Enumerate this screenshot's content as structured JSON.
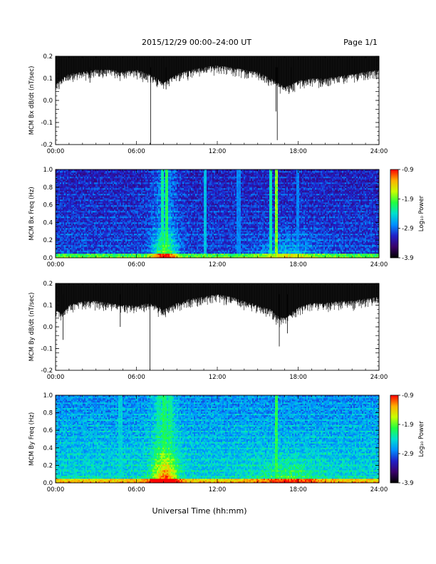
{
  "header": {
    "title": "2015/12/29  00:00–24:00 UT",
    "page": "Page 1/1"
  },
  "footer": {
    "xlabel": "Universal Time (hh:mm)"
  },
  "colors": {
    "colorbar_stops": [
      "#000000",
      "#3a006a",
      "#2020c8",
      "#0090ff",
      "#00e0d0",
      "#20ff40",
      "#c8ff00",
      "#ffb000",
      "#ff0000"
    ]
  },
  "chart_data": [
    {
      "id": "bx-dbdt",
      "type": "line",
      "ylabel": "MCM Bx dB/dt (nT/sec)",
      "xlabel": "",
      "xlim": [
        0,
        24
      ],
      "ylim": [
        -0.2,
        0.2
      ],
      "x_ticks": [
        0,
        6,
        12,
        18,
        24
      ],
      "x_tick_labels": [
        "00:00",
        "06:00",
        "12:00",
        "18:00",
        "24:00"
      ],
      "y_ticks": [
        -0.2,
        -0.1,
        0.0,
        0.1,
        0.2
      ],
      "y_tick_labels": [
        "-0.2",
        "-0.1",
        "0.0",
        "0.1",
        "0.2"
      ],
      "envelope": {
        "x": [
          0,
          0.5,
          1,
          2,
          3,
          4,
          5,
          6,
          7,
          7.5,
          8,
          9,
          10,
          11,
          12,
          13,
          14,
          15,
          16,
          16.5,
          17,
          18,
          19,
          20,
          21,
          22,
          23,
          24
        ],
        "upper": [
          0.2,
          0.2,
          0.2,
          0.2,
          0.2,
          0.2,
          0.2,
          0.2,
          0.2,
          0.2,
          0.2,
          0.2,
          0.2,
          0.2,
          0.2,
          0.2,
          0.2,
          0.2,
          0.2,
          0.2,
          0.2,
          0.2,
          0.2,
          0.2,
          0.2,
          0.2,
          0.2,
          0.2
        ],
        "lower": [
          0.08,
          0.1,
          0.12,
          0.13,
          0.14,
          0.14,
          0.13,
          0.14,
          0.12,
          0.1,
          0.08,
          0.12,
          0.14,
          0.15,
          0.16,
          0.15,
          0.14,
          0.13,
          0.1,
          0.08,
          0.06,
          0.09,
          0.1,
          0.1,
          0.11,
          0.12,
          0.13,
          0.14
        ]
      },
      "spikes": [
        {
          "x": 0.2,
          "y": 0.06
        },
        {
          "x": 2.55,
          "y": 0.08
        },
        {
          "x": 7.05,
          "y": -0.2
        },
        {
          "x": 8.2,
          "y": 0.05
        },
        {
          "x": 16.35,
          "y": -0.05
        },
        {
          "x": 16.45,
          "y": -0.18
        },
        {
          "x": 17.5,
          "y": 0.05
        }
      ]
    },
    {
      "id": "bx-spectrogram",
      "type": "heatmap",
      "ylabel": "MCM Bx Freq (Hz)",
      "xlabel": "",
      "xlim": [
        0,
        24
      ],
      "ylim": [
        0,
        1
      ],
      "x_ticks": [
        0,
        6,
        12,
        18,
        24
      ],
      "x_tick_labels": [
        "00:00",
        "06:00",
        "12:00",
        "18:00",
        "24:00"
      ],
      "y_ticks": [
        0.0,
        0.2,
        0.4,
        0.6,
        0.8,
        1.0
      ],
      "y_tick_labels": [
        "0.0",
        "0.2",
        "0.4",
        "0.6",
        "0.8",
        "1.0"
      ],
      "colorbar": {
        "label": "Log₁₀ Power",
        "range": [
          -3.9,
          -0.9
        ],
        "ticks": [
          -0.9,
          -1.9,
          -2.9,
          -3.9
        ],
        "tick_labels": [
          "-0.9",
          "-1.9",
          "-2.9",
          "-3.9"
        ]
      },
      "bright_columns": [
        {
          "x": 7.9,
          "value": -1.9
        },
        {
          "x": 8.25,
          "value": -1.7
        },
        {
          "x": 11.1,
          "value": -2.3
        },
        {
          "x": 13.6,
          "value": -2.6
        },
        {
          "x": 16.0,
          "value": -2.0
        },
        {
          "x": 16.4,
          "value": -1.4
        },
        {
          "x": 18.0,
          "value": -2.6
        }
      ]
    },
    {
      "id": "by-dbdt",
      "type": "line",
      "ylabel": "MCM By dB/dt (nT/sec)",
      "xlabel": "",
      "xlim": [
        0,
        24
      ],
      "ylim": [
        -0.2,
        0.2
      ],
      "x_ticks": [
        0,
        6,
        12,
        18,
        24
      ],
      "x_tick_labels": [
        "00:00",
        "06:00",
        "12:00",
        "18:00",
        "24:00"
      ],
      "y_ticks": [
        -0.2,
        -0.1,
        0.0,
        0.1,
        0.2
      ],
      "y_tick_labels": [
        "-0.2",
        "-0.1",
        "0.0",
        "0.1",
        "0.2"
      ],
      "envelope": {
        "x": [
          0,
          0.5,
          1,
          2,
          3,
          4,
          5,
          6,
          7,
          7.5,
          8,
          9,
          10,
          11,
          12,
          13,
          14,
          15,
          16,
          16.5,
          17,
          18,
          19,
          20,
          21,
          22,
          23,
          24
        ],
        "upper": [
          0.2,
          0.2,
          0.2,
          0.2,
          0.2,
          0.2,
          0.2,
          0.2,
          0.2,
          0.2,
          0.2,
          0.2,
          0.2,
          0.2,
          0.2,
          0.2,
          0.2,
          0.2,
          0.2,
          0.2,
          0.2,
          0.2,
          0.2,
          0.2,
          0.2,
          0.2,
          0.2,
          0.2
        ],
        "lower": [
          0.08,
          0.06,
          0.1,
          0.12,
          0.12,
          0.11,
          0.1,
          0.1,
          0.11,
          0.1,
          0.08,
          0.11,
          0.13,
          0.14,
          0.15,
          0.14,
          0.12,
          0.1,
          0.08,
          0.05,
          0.04,
          0.09,
          0.11,
          0.11,
          0.12,
          0.12,
          0.13,
          0.14
        ]
      },
      "spikes": [
        {
          "x": 0.55,
          "y": -0.06
        },
        {
          "x": 4.8,
          "y": 0.0
        },
        {
          "x": 7.0,
          "y": -0.2
        },
        {
          "x": 16.6,
          "y": -0.09
        },
        {
          "x": 17.2,
          "y": -0.03
        }
      ]
    },
    {
      "id": "by-spectrogram",
      "type": "heatmap",
      "ylabel": "MCM By Freq (Hz)",
      "xlabel": "",
      "xlim": [
        0,
        24
      ],
      "ylim": [
        0,
        1
      ],
      "x_ticks": [
        0,
        6,
        12,
        18,
        24
      ],
      "x_tick_labels": [
        "00:00",
        "06:00",
        "12:00",
        "18:00",
        "24:00"
      ],
      "y_ticks": [
        0.0,
        0.2,
        0.4,
        0.6,
        0.8,
        1.0
      ],
      "y_tick_labels": [
        "0.0",
        "0.2",
        "0.4",
        "0.6",
        "0.8",
        "1.0"
      ],
      "colorbar": {
        "label": "Log₁₀ Power",
        "range": [
          -3.9,
          -0.9
        ],
        "ticks": [
          -0.9,
          -1.9,
          -2.9,
          -3.9
        ],
        "tick_labels": [
          "-0.9",
          "-1.9",
          "-2.9",
          "-3.9"
        ]
      },
      "bright_columns": [
        {
          "x": 4.8,
          "value": -2.2
        },
        {
          "x": 7.6,
          "value": -2.0
        },
        {
          "x": 8.1,
          "value": -1.8
        },
        {
          "x": 8.5,
          "value": -1.9
        },
        {
          "x": 16.4,
          "value": -1.7
        }
      ]
    }
  ]
}
